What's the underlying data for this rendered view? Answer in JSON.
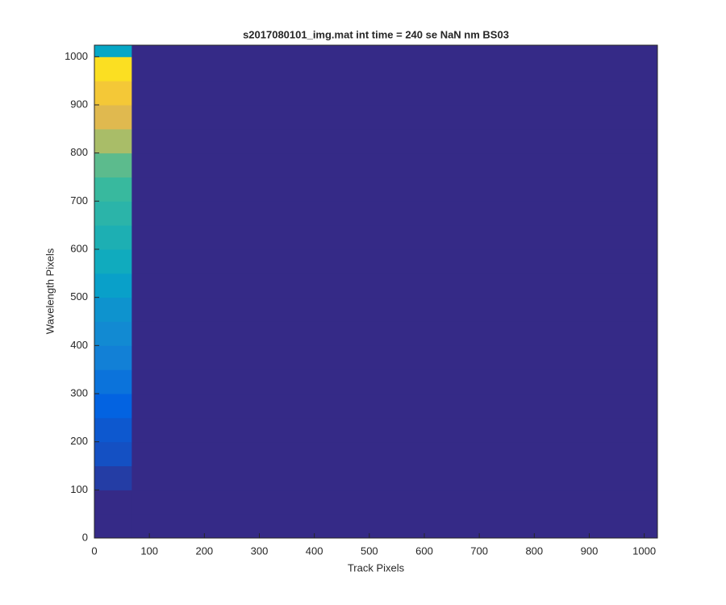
{
  "chart_data": {
    "type": "heatmap",
    "title": "s2017080101_img.mat int time = 240 se  NaN nm BS03",
    "x_label": "Track Pixels",
    "y_label": "Wavelength Pixels",
    "xlim": [
      0,
      1024
    ],
    "ylim": [
      0,
      1024
    ],
    "xticks": [
      0,
      100,
      200,
      300,
      400,
      500,
      600,
      700,
      800,
      900,
      1000
    ],
    "yticks": [
      0,
      100,
      200,
      300,
      400,
      500,
      600,
      700,
      800,
      900,
      1000
    ],
    "x_edges": [
      0,
      68,
      1024
    ],
    "y_edges": [
      0,
      50,
      100,
      150,
      200,
      250,
      300,
      350,
      400,
      450,
      500,
      550,
      600,
      650,
      700,
      750,
      800,
      850,
      900,
      950,
      1000,
      1024
    ],
    "values": [
      [
        0,
        0
      ],
      [
        0,
        0
      ],
      [
        0.05,
        0
      ],
      [
        0.1,
        0
      ],
      [
        0.12,
        0
      ],
      [
        0.15,
        0
      ],
      [
        0.22,
        0
      ],
      [
        0.28,
        0
      ],
      [
        0.32,
        0
      ],
      [
        0.36,
        0
      ],
      [
        0.42,
        0
      ],
      [
        0.48,
        0
      ],
      [
        0.52,
        0
      ],
      [
        0.56,
        0
      ],
      [
        0.6,
        0
      ],
      [
        0.66,
        0
      ],
      [
        0.78,
        0
      ],
      [
        0.85,
        0
      ],
      [
        0.9,
        0
      ],
      [
        0.95,
        0
      ],
      [
        0.45,
        0
      ]
    ],
    "colormap": [
      [
        0,
        "#352a87"
      ],
      [
        0.15,
        "#0363e1"
      ],
      [
        0.3,
        "#1485d4"
      ],
      [
        0.45,
        "#06a7c6"
      ],
      [
        0.6,
        "#38b99e"
      ],
      [
        0.75,
        "#92bf73"
      ],
      [
        0.85,
        "#e0b94f"
      ],
      [
        0.92,
        "#fcce2e"
      ],
      [
        1,
        "#f9fb0e"
      ]
    ]
  }
}
